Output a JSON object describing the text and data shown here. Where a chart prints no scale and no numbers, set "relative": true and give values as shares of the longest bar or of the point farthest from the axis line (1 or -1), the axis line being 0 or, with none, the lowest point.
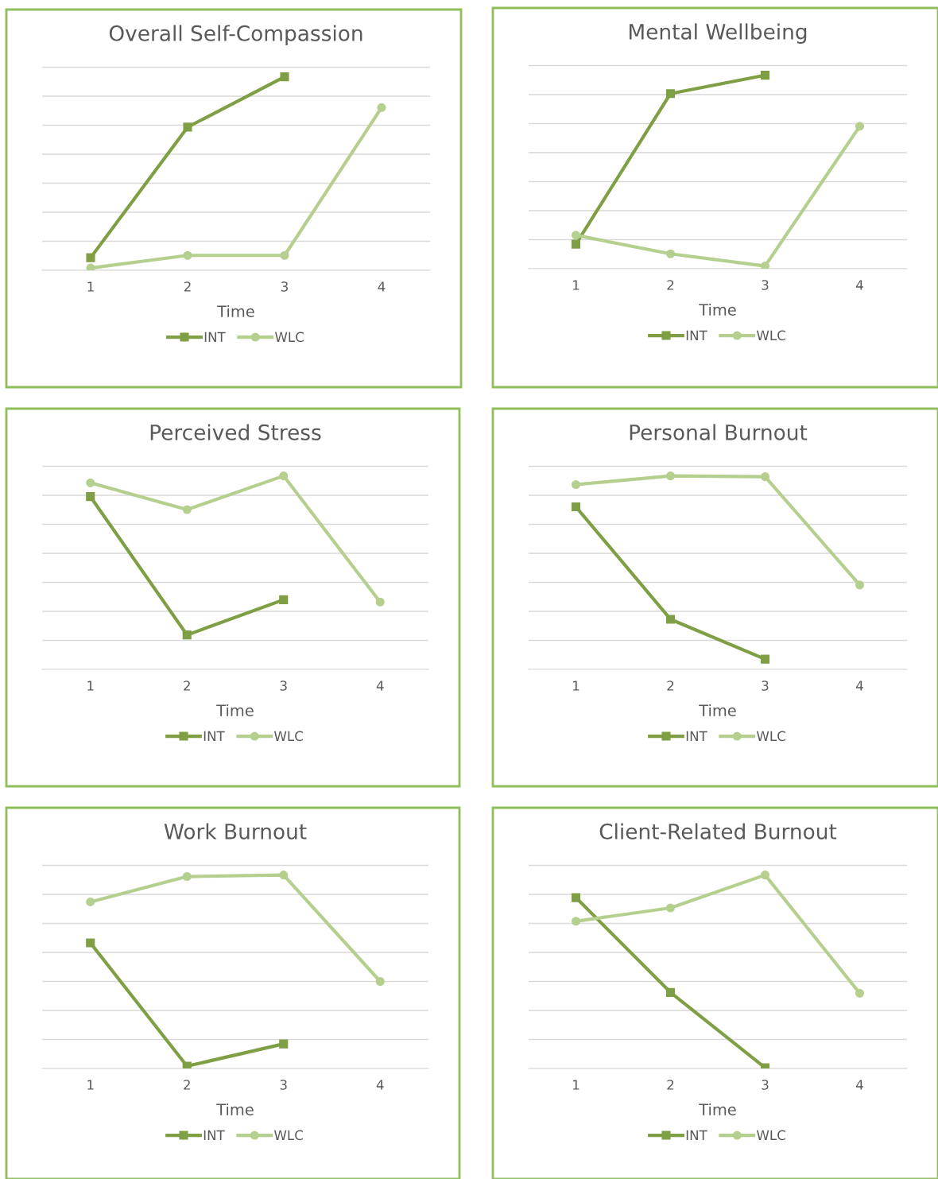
{
  "chart_data": [
    {
      "type": "line",
      "title": "Overall Self-Compassion",
      "xlabel": "Time",
      "categories": [
        "1",
        "2",
        "3",
        "4"
      ],
      "relative": true,
      "grid": "y",
      "legend": "bottom",
      "series": [
        {
          "name": "INT",
          "color": "#7f9f45",
          "marker": "square",
          "values": [
            0.065,
            0.74,
            1.0,
            null
          ]
        },
        {
          "name": "WLC",
          "color": "#b5cf8f",
          "marker": "circle",
          "values": [
            0.012,
            0.077,
            0.077,
            0.841
          ]
        }
      ]
    },
    {
      "type": "line",
      "title": "Mental Wellbeing",
      "xlabel": "Time",
      "categories": [
        "1",
        "2",
        "3",
        "4"
      ],
      "relative": true,
      "grid": "y",
      "legend": "bottom",
      "series": [
        {
          "name": "INT",
          "color": "#7f9f45",
          "marker": "square",
          "values": [
            0.127,
            0.905,
            1.0,
            null
          ]
        },
        {
          "name": "WLC",
          "color": "#b5cf8f",
          "marker": "circle",
          "values": [
            0.173,
            0.077,
            0.014,
            0.736
          ]
        }
      ]
    },
    {
      "type": "line",
      "title": "Perceived Stress",
      "xlabel": "Time",
      "categories": [
        "1",
        "2",
        "3",
        "4"
      ],
      "relative": true,
      "grid": "y",
      "legend": "bottom",
      "series": [
        {
          "name": "INT",
          "color": "#7f9f45",
          "marker": "square",
          "values": [
            0.893,
            0.178,
            0.36,
            null
          ]
        },
        {
          "name": "WLC",
          "color": "#b5cf8f",
          "marker": "circle",
          "values": [
            0.964,
            0.826,
            1.0,
            0.348
          ]
        }
      ]
    },
    {
      "type": "line",
      "title": "Personal Burnout",
      "xlabel": "Time",
      "categories": [
        "1",
        "2",
        "3",
        "4"
      ],
      "relative": true,
      "grid": "y",
      "legend": "bottom",
      "series": [
        {
          "name": "INT",
          "color": "#7f9f45",
          "marker": "square",
          "values": [
            0.84,
            0.259,
            0.053,
            null
          ]
        },
        {
          "name": "WLC",
          "color": "#b5cf8f",
          "marker": "circle",
          "values": [
            0.955,
            1.0,
            0.996,
            0.436
          ]
        }
      ]
    },
    {
      "type": "line",
      "title": "Work Burnout",
      "xlabel": "Time",
      "categories": [
        "1",
        "2",
        "3",
        "4"
      ],
      "relative": true,
      "grid": "y",
      "legend": "bottom",
      "series": [
        {
          "name": "INT",
          "color": "#7f9f45",
          "marker": "square",
          "values": [
            0.649,
            0.012,
            0.127,
            null
          ]
        },
        {
          "name": "WLC",
          "color": "#b5cf8f",
          "marker": "circle",
          "values": [
            0.861,
            0.992,
            1.0,
            0.45
          ]
        }
      ]
    },
    {
      "type": "line",
      "title": "Client-Related Burnout",
      "xlabel": "Time",
      "categories": [
        "1",
        "2",
        "3",
        "4"
      ],
      "relative": true,
      "grid": "y",
      "legend": "bottom",
      "series": [
        {
          "name": "INT",
          "color": "#7f9f45",
          "marker": "square",
          "values": [
            0.883,
            0.393,
            0.004,
            null
          ]
        },
        {
          "name": "WLC",
          "color": "#b5cf8f",
          "marker": "circle",
          "values": [
            0.761,
            0.83,
            1.0,
            0.389
          ]
        }
      ]
    }
  ]
}
